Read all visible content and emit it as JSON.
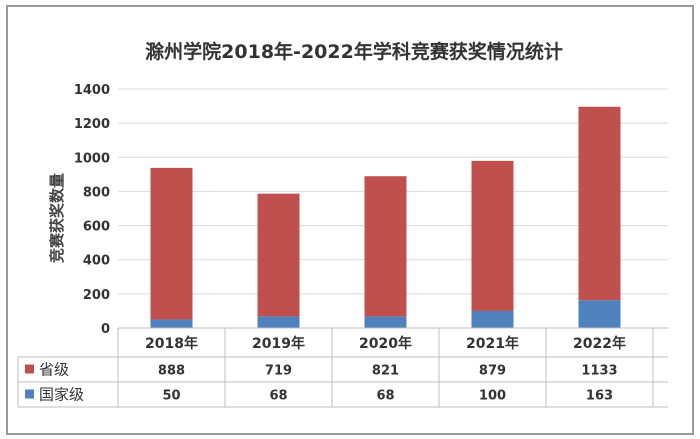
{
  "chart_data": {
    "type": "bar",
    "stacked": true,
    "title": "滁州学院2018年-2022年学科竞赛获奖情况统计",
    "ylabel": "竞赛获奖数量",
    "xlabel": "",
    "ylim": [
      0,
      1400
    ],
    "yticks": [
      "0",
      "200",
      "400",
      "600",
      "800",
      "1000",
      "1200",
      "1400"
    ],
    "categories": [
      "2018年",
      "2019年",
      "2020年",
      "2021年",
      "2022年"
    ],
    "series": [
      {
        "name": "国家级",
        "color": "#4f81bd",
        "values": [
          50,
          68,
          68,
          100,
          163
        ]
      },
      {
        "name": "省级",
        "color": "#c0504d",
        "values": [
          888,
          719,
          821,
          879,
          1133
        ]
      }
    ],
    "table": {
      "rows": [
        {
          "name": "省级",
          "color": "#c0504d",
          "cells": [
            "888",
            "719",
            "821",
            "879",
            "1133"
          ]
        },
        {
          "name": "国家级",
          "color": "#4f81bd",
          "cells": [
            "50",
            "68",
            "68",
            "100",
            "163"
          ]
        }
      ]
    },
    "grid": true,
    "legend": "data-table"
  }
}
